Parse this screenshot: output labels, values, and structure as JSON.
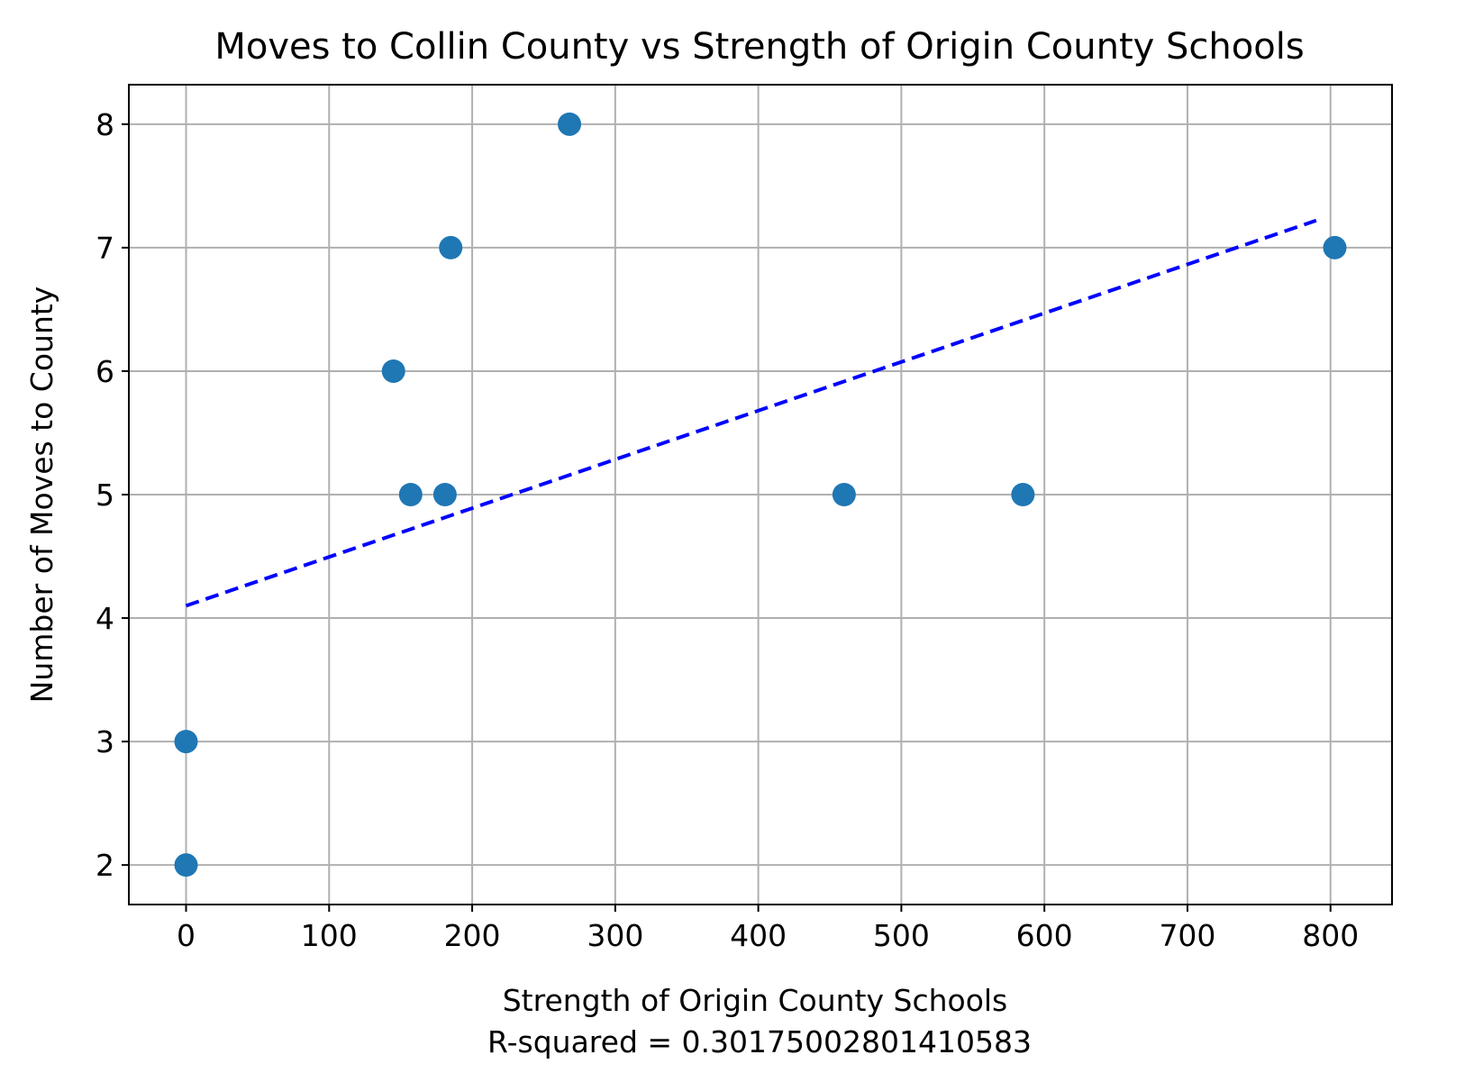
{
  "chart_data": {
    "type": "scatter",
    "title": "Moves to Collin County vs Strength of Origin County Schools",
    "xlabel": "Strength of Origin County Schools",
    "xlabel_sub": "R-squared = 0.30175002801410583",
    "ylabel": "Number of Moves to County",
    "xlim": [
      -40,
      843
    ],
    "ylim": [
      1.68,
      8.32
    ],
    "xticks": [
      0,
      100,
      200,
      300,
      400,
      500,
      600,
      700,
      800
    ],
    "yticks": [
      2,
      3,
      4,
      5,
      6,
      7,
      8
    ],
    "grid": true,
    "colors": {
      "points": "#1f77b4",
      "trend": "#0000ff"
    },
    "points": [
      {
        "x": 0,
        "y": 2
      },
      {
        "x": 0,
        "y": 3
      },
      {
        "x": 145,
        "y": 6
      },
      {
        "x": 157,
        "y": 5
      },
      {
        "x": 181,
        "y": 5
      },
      {
        "x": 185,
        "y": 7
      },
      {
        "x": 268,
        "y": 8
      },
      {
        "x": 460,
        "y": 5
      },
      {
        "x": 585,
        "y": 5
      },
      {
        "x": 803,
        "y": 7
      }
    ],
    "trendline": {
      "style": "dashed",
      "x": [
        0,
        790
      ],
      "y": [
        4.1,
        7.22
      ]
    }
  }
}
